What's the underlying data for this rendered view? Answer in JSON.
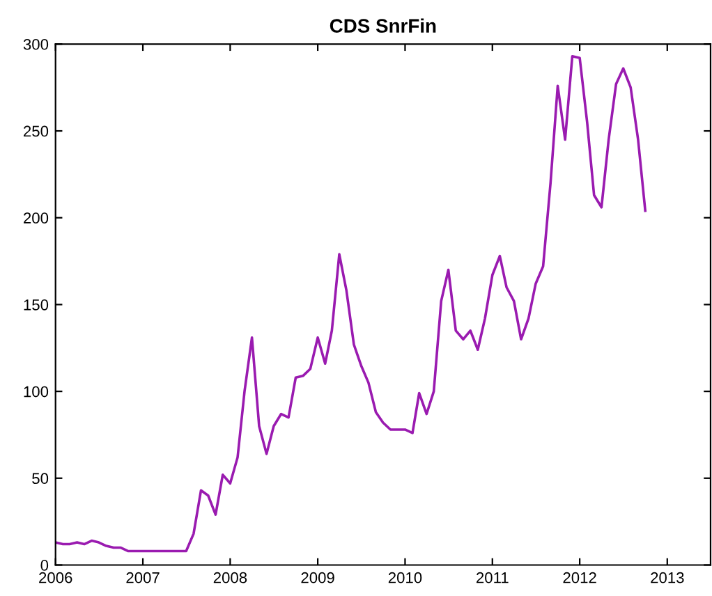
{
  "chart_data": {
    "type": "line",
    "title": "CDS SnrFin",
    "x": [
      "2006-01",
      "2006-02",
      "2006-03",
      "2006-04",
      "2006-05",
      "2006-06",
      "2006-07",
      "2006-08",
      "2006-09",
      "2006-10",
      "2006-11",
      "2006-12",
      "2007-01",
      "2007-02",
      "2007-03",
      "2007-04",
      "2007-05",
      "2007-06",
      "2007-07",
      "2007-08",
      "2007-09",
      "2007-10",
      "2007-11",
      "2007-12",
      "2008-01",
      "2008-02",
      "2008-03",
      "2008-04",
      "2008-05",
      "2008-06",
      "2008-07",
      "2008-08",
      "2008-09",
      "2008-10",
      "2008-11",
      "2008-12",
      "2009-01",
      "2009-02",
      "2009-03",
      "2009-04",
      "2009-05",
      "2009-06",
      "2009-07",
      "2009-08",
      "2009-09",
      "2009-10",
      "2009-11",
      "2009-12",
      "2010-01",
      "2010-02",
      "2010-03",
      "2010-04",
      "2010-05",
      "2010-06",
      "2010-07",
      "2010-08",
      "2010-09",
      "2010-10",
      "2010-11",
      "2010-12",
      "2011-01",
      "2011-02",
      "2011-03",
      "2011-04",
      "2011-05",
      "2011-06",
      "2011-07",
      "2011-08",
      "2011-09",
      "2011-10",
      "2011-11",
      "2011-12",
      "2012-01",
      "2012-02",
      "2012-03",
      "2012-04",
      "2012-05",
      "2012-06",
      "2012-07",
      "2012-08",
      "2012-09",
      "2012-10"
    ],
    "series": [
      {
        "color": "#9a1bb0",
        "values": [
          13,
          12,
          12,
          13,
          12,
          14,
          13,
          11,
          10,
          10,
          8,
          8,
          8,
          8,
          8,
          8,
          8,
          8,
          8,
          18,
          43,
          40,
          29,
          52,
          47,
          62,
          100,
          131,
          80,
          64,
          80,
          87,
          85,
          108,
          109,
          113,
          131,
          116,
          135,
          179,
          158,
          127,
          115,
          105,
          88,
          82,
          78,
          78,
          78,
          76,
          99,
          87,
          100,
          152,
          170,
          135,
          130,
          135,
          124,
          142,
          167,
          178,
          160,
          152,
          130,
          142,
          162,
          172,
          220,
          276,
          245,
          293,
          292,
          255,
          213,
          206,
          245,
          277,
          286,
          275,
          245,
          204
        ]
      }
    ],
    "xlim": [
      "2006",
      "2013-07"
    ],
    "xticks": [
      "2006",
      "2007",
      "2008",
      "2009",
      "2010",
      "2011",
      "2012",
      "2013"
    ],
    "ylim": [
      0,
      300
    ],
    "yticks": [
      0,
      50,
      100,
      150,
      200,
      250,
      300
    ],
    "grid": false,
    "marker": "none",
    "line_style": "solid"
  }
}
